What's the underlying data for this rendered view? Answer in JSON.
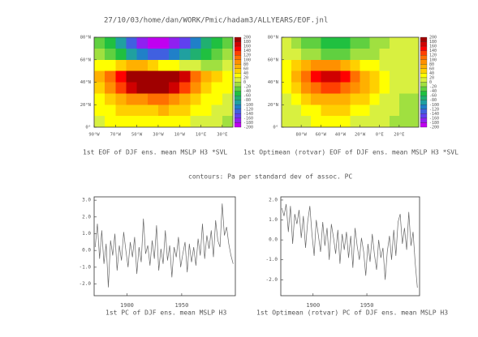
{
  "header": "27/10/03/home/dan/WORK/Pmic/hadam3/ALLYEARS/EOF.jnl",
  "note": "contours: Pa per standard dev of assoc. PC",
  "chart_data": [
    {
      "type": "map",
      "title": "1st EOF of DJF ens. mean MSLP H3 *SVL",
      "xlim": [
        -90,
        40
      ],
      "ylim": [
        0,
        80
      ],
      "xticks": [
        {
          "value": -90,
          "label": "90°W"
        },
        {
          "value": -70,
          "label": "70°W"
        },
        {
          "value": -50,
          "label": "50°W"
        },
        {
          "value": -30,
          "label": "30°W"
        },
        {
          "value": -10,
          "label": "10°W"
        },
        {
          "value": 10,
          "label": "10°E"
        },
        {
          "value": 30,
          "label": "30°E"
        }
      ],
      "yticks": [
        {
          "value": 0,
          "label": "0°"
        },
        {
          "value": 20,
          "label": "20°N"
        },
        {
          "value": 40,
          "label": "40°N"
        },
        {
          "value": 60,
          "label": "60°N"
        },
        {
          "value": 80,
          "label": "80°N"
        }
      ],
      "lon": [
        -85,
        -75,
        -65,
        -55,
        -45,
        -35,
        -25,
        -15,
        -5,
        5,
        15,
        25,
        35
      ],
      "lat": [
        75,
        65,
        55,
        45,
        35,
        25,
        15,
        5
      ],
      "values": [
        [
          -40,
          -60,
          -100,
          -140,
          -180,
          -200,
          -200,
          -180,
          -160,
          -120,
          -80,
          -60,
          -40
        ],
        [
          -20,
          -40,
          -60,
          -100,
          -120,
          -140,
          -140,
          -120,
          -100,
          -80,
          -60,
          -40,
          -20
        ],
        [
          20,
          20,
          40,
          60,
          60,
          40,
          20,
          20,
          0,
          0,
          -20,
          -20,
          0
        ],
        [
          60,
          100,
          140,
          180,
          200,
          200,
          200,
          180,
          160,
          100,
          60,
          40,
          20
        ],
        [
          40,
          80,
          120,
          160,
          180,
          180,
          180,
          160,
          120,
          80,
          40,
          20,
          20
        ],
        [
          20,
          40,
          60,
          80,
          80,
          100,
          100,
          80,
          60,
          40,
          20,
          20,
          0
        ],
        [
          20,
          20,
          40,
          40,
          40,
          40,
          60,
          40,
          40,
          20,
          20,
          0,
          0
        ],
        [
          0,
          20,
          20,
          20,
          20,
          20,
          20,
          20,
          20,
          0,
          0,
          0,
          -20
        ]
      ],
      "colorbar_ticks": [
        200,
        180,
        160,
        140,
        120,
        100,
        80,
        60,
        40,
        20,
        0,
        -20,
        -40,
        -60,
        -80,
        -100,
        -120,
        -140,
        -160,
        -180,
        -200
      ],
      "colors": [
        "#a00000",
        "#d00000",
        "#ff0000",
        "#ff4000",
        "#ff7000",
        "#ff9000",
        "#ffb000",
        "#ffd000",
        "#ffff00",
        "#d8f040",
        "#a0e040",
        "#60d040",
        "#20c040",
        "#20b070",
        "#20a0a0",
        "#2080c8",
        "#4060e0",
        "#6040f0",
        "#9020f0",
        "#c000f0"
      ]
    },
    {
      "type": "map",
      "title": "1st Optimean (rotvar) EOF of DJF ens. mean MSLP H3 *SVL",
      "xlim": [
        -100,
        40
      ],
      "ylim": [
        0,
        80
      ],
      "xticks": [
        {
          "value": -80,
          "label": "80°W"
        },
        {
          "value": -60,
          "label": "60°W"
        },
        {
          "value": -40,
          "label": "40°W"
        },
        {
          "value": -20,
          "label": "20°W"
        },
        {
          "value": 0,
          "label": "0°E"
        },
        {
          "value": 20,
          "label": "20°E"
        }
      ],
      "yticks": [
        {
          "value": 0,
          "label": "0°"
        },
        {
          "value": 20,
          "label": "20°N"
        },
        {
          "value": 40,
          "label": "40°N"
        },
        {
          "value": 60,
          "label": "60°N"
        },
        {
          "value": 80,
          "label": "80°N"
        }
      ],
      "lon": [
        -95,
        -85,
        -75,
        -65,
        -55,
        -45,
        -35,
        -25,
        -15,
        -5,
        5,
        15,
        25,
        35
      ],
      "lat": [
        75,
        65,
        55,
        45,
        35,
        25,
        15,
        5
      ],
      "values": [
        [
          0,
          -20,
          -40,
          -40,
          -60,
          -60,
          -60,
          -40,
          -40,
          -20,
          -20,
          0,
          0,
          0
        ],
        [
          0,
          0,
          -20,
          -20,
          -40,
          -40,
          -40,
          -20,
          -20,
          -20,
          0,
          0,
          0,
          0
        ],
        [
          20,
          40,
          60,
          80,
          80,
          80,
          60,
          40,
          20,
          20,
          0,
          0,
          0,
          0
        ],
        [
          20,
          60,
          100,
          140,
          160,
          160,
          140,
          100,
          60,
          40,
          20,
          0,
          0,
          0
        ],
        [
          20,
          40,
          80,
          100,
          120,
          120,
          100,
          80,
          60,
          40,
          20,
          0,
          0,
          0
        ],
        [
          0,
          20,
          40,
          60,
          60,
          60,
          60,
          40,
          40,
          20,
          0,
          0,
          -20,
          -20
        ],
        [
          0,
          0,
          20,
          20,
          40,
          40,
          40,
          20,
          20,
          0,
          0,
          0,
          -20,
          -20
        ],
        [
          0,
          0,
          0,
          20,
          20,
          20,
          20,
          0,
          0,
          0,
          0,
          -20,
          -20,
          -20
        ]
      ],
      "colorbar_ticks": [
        200,
        180,
        160,
        140,
        120,
        100,
        80,
        60,
        40,
        20,
        0,
        -20,
        -40,
        -60,
        -80,
        -100,
        -120,
        -140,
        -160,
        -180,
        -200
      ],
      "colors": [
        "#a00000",
        "#d00000",
        "#ff0000",
        "#ff4000",
        "#ff7000",
        "#ff9000",
        "#ffb000",
        "#ffd000",
        "#ffff00",
        "#d8f040",
        "#a0e040",
        "#60d040",
        "#20c040",
        "#20b070",
        "#20a0a0",
        "#2080c8",
        "#4060e0",
        "#6040f0",
        "#9020f0",
        "#c000f0"
      ]
    },
    {
      "type": "line",
      "title": "1st PC of DJF ens. mean MSLP H3",
      "color": "#666666",
      "xlim": [
        1870,
        1999
      ],
      "ylim": [
        -2.7,
        3.2
      ],
      "xticks": [
        1900,
        1950
      ],
      "yticks": [
        {
          "value": 3,
          "label": "3.0"
        },
        {
          "value": 2,
          "label": "2.0"
        },
        {
          "value": 1,
          "label": "1.0"
        },
        {
          "value": 0,
          "label": "0.0"
        },
        {
          "value": -1,
          "label": "-1.0"
        },
        {
          "value": -2,
          "label": "-2.0"
        }
      ],
      "x": [
        1871,
        1873,
        1875,
        1877,
        1879,
        1881,
        1883,
        1885,
        1887,
        1889,
        1891,
        1893,
        1895,
        1897,
        1899,
        1901,
        1903,
        1905,
        1907,
        1909,
        1911,
        1913,
        1915,
        1917,
        1919,
        1921,
        1923,
        1925,
        1927,
        1929,
        1931,
        1933,
        1935,
        1937,
        1939,
        1941,
        1943,
        1945,
        1947,
        1949,
        1951,
        1953,
        1955,
        1957,
        1959,
        1961,
        1963,
        1965,
        1967,
        1969,
        1971,
        1973,
        1975,
        1977,
        1979,
        1981,
        1983,
        1985,
        1987,
        1989,
        1991,
        1993,
        1995,
        1997
      ],
      "values": [
        0.2,
        1.6,
        -0.5,
        1.2,
        -0.8,
        0.4,
        -2.2,
        0.6,
        -0.3,
        1.0,
        -1.2,
        0.3,
        -0.6,
        1.1,
        0.0,
        -1.0,
        0.5,
        -0.4,
        0.8,
        -1.4,
        0.2,
        -0.7,
        1.9,
        -0.2,
        0.3,
        -0.9,
        0.6,
        -0.5,
        1.5,
        -1.2,
        0.1,
        -0.8,
        1.2,
        -0.6,
        0.3,
        -1.6,
        0.2,
        -0.4,
        0.8,
        -1.0,
        -0.2,
        0.5,
        -1.3,
        0.4,
        -0.7,
        0.2,
        -0.9,
        0.7,
        -0.3,
        1.6,
        -0.5,
        0.9,
        0.1,
        1.2,
        -0.4,
        1.8,
        0.6,
        0.2,
        2.8,
        0.9,
        1.4,
        0.4,
        -0.3,
        -0.8
      ]
    },
    {
      "type": "line",
      "title": "1st  Optimean (rotvar) PC of DJF ens. mean MSLP H3",
      "color": "#666666",
      "xlim": [
        1870,
        1999
      ],
      "ylim": [
        -2.8,
        2.16
      ],
      "xticks": [
        1900,
        1950
      ],
      "yticks": [
        {
          "value": 2,
          "label": "2.0"
        },
        {
          "value": 1,
          "label": "1.0"
        },
        {
          "value": 0,
          "label": "0.0"
        },
        {
          "value": -1,
          "label": "-1.0"
        },
        {
          "value": -2,
          "label": "-2.0"
        }
      ],
      "x": [
        1871,
        1873,
        1875,
        1877,
        1879,
        1881,
        1883,
        1885,
        1887,
        1889,
        1891,
        1893,
        1895,
        1897,
        1899,
        1901,
        1903,
        1905,
        1907,
        1909,
        1911,
        1913,
        1915,
        1917,
        1919,
        1921,
        1923,
        1925,
        1927,
        1929,
        1931,
        1933,
        1935,
        1937,
        1939,
        1941,
        1943,
        1945,
        1947,
        1949,
        1951,
        1953,
        1955,
        1957,
        1959,
        1961,
        1963,
        1965,
        1967,
        1969,
        1971,
        1973,
        1975,
        1977,
        1979,
        1981,
        1983,
        1985,
        1987,
        1989,
        1991,
        1993,
        1995,
        1997
      ],
      "values": [
        1.6,
        1.2,
        1.8,
        0.4,
        1.7,
        -0.2,
        1.3,
        0.8,
        1.5,
        0.1,
        1.2,
        -0.4,
        0.9,
        1.7,
        0.3,
        -0.8,
        1.0,
        0.2,
        -0.6,
        0.9,
        -0.3,
        0.6,
        -1.0,
        0.8,
        0.1,
        -0.7,
        0.5,
        -1.2,
        0.3,
        -0.5,
        0.4,
        -0.9,
        0.2,
        -1.4,
        0.6,
        -0.3,
        -1.0,
        0.1,
        -0.6,
        -1.8,
        -0.2,
        -1.1,
        0.3,
        -0.7,
        -1.5,
        0.0,
        -0.9,
        -0.4,
        -2.0,
        -0.6,
        0.2,
        -1.0,
        0.5,
        -0.8,
        0.9,
        1.3,
        -0.2,
        0.6,
        -0.5,
        1.4,
        -0.3,
        0.4,
        -1.2,
        -2.4
      ]
    }
  ]
}
